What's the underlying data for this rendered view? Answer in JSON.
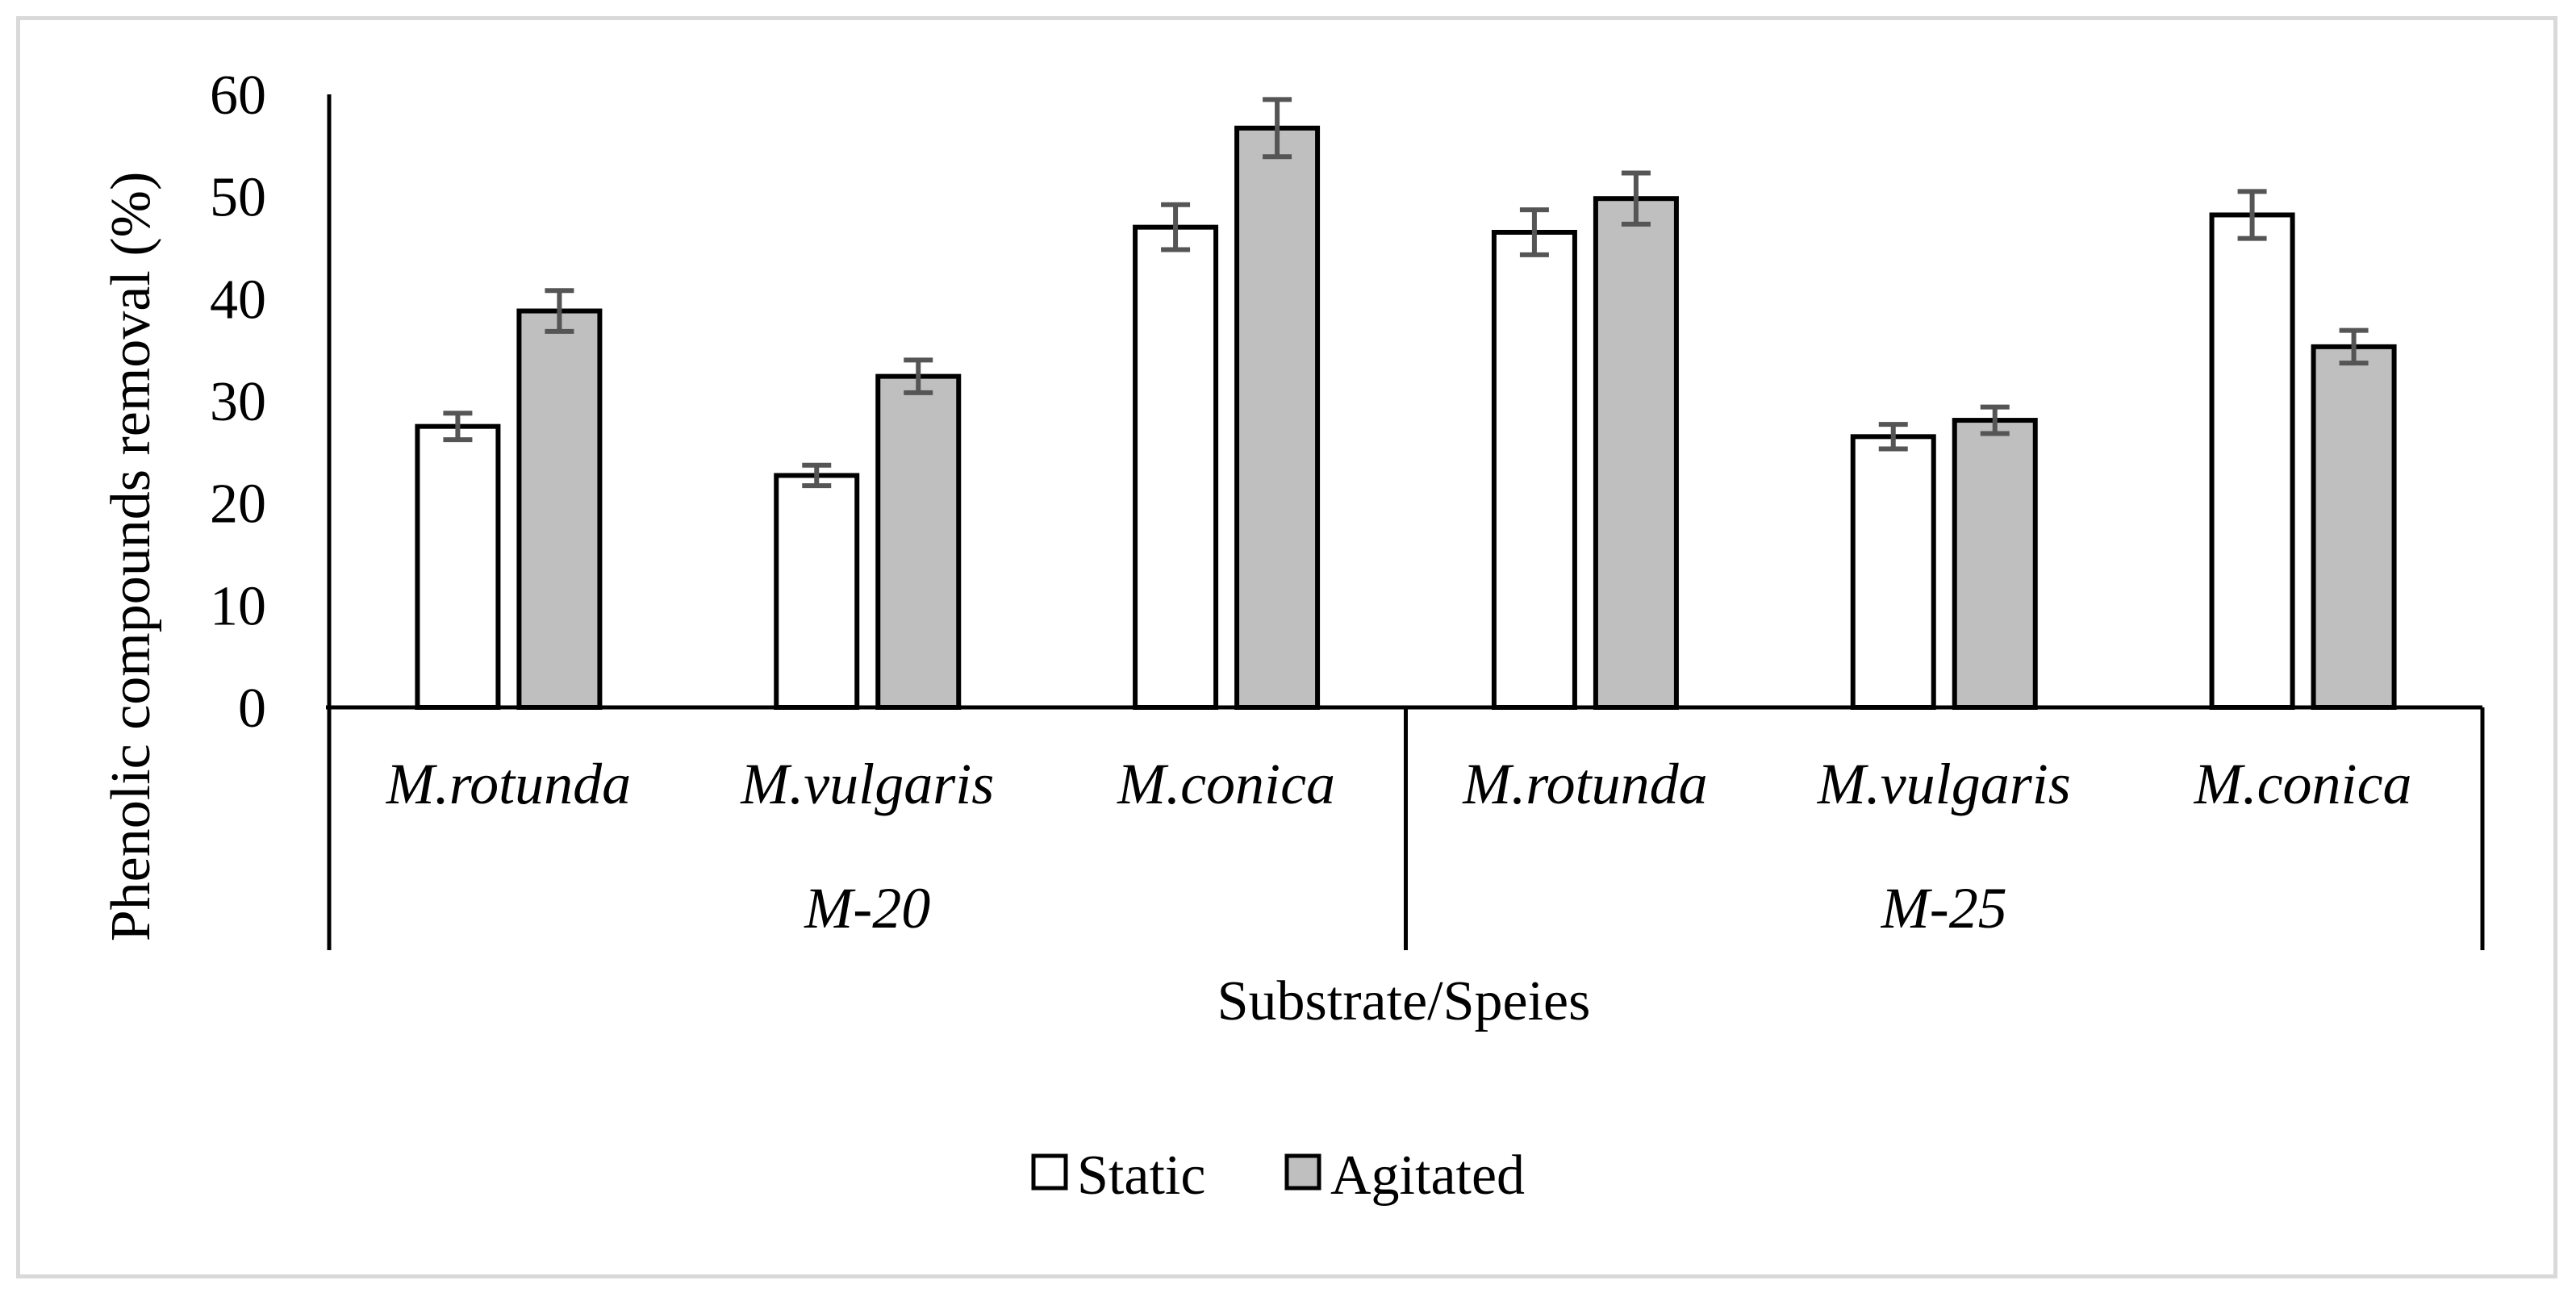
{
  "chart_data": {
    "type": "bar",
    "title": "",
    "xlabel": "Substrate/Speies",
    "ylabel": "Phenolic compounds removal (%)",
    "ylim": [
      0,
      60
    ],
    "yticks": [
      "0",
      "10",
      "20",
      "30",
      "40",
      "50",
      "60"
    ],
    "categories": [
      "M.rotunda",
      "M.vulgaris",
      "M.conica",
      "M.rotunda",
      "M.vulgaris",
      "M.conica"
    ],
    "groups": [
      {
        "label": "M-20",
        "categories": [
          "M.rotunda",
          "M.vulgaris",
          "M.conica"
        ]
      },
      {
        "label": "M-25",
        "categories": [
          "M.rotunda",
          "M.vulgaris",
          "M.conica"
        ]
      }
    ],
    "series": [
      {
        "name": "Static",
        "color": "#ffffff",
        "values": [
          27.5,
          22.7,
          47.0,
          46.5,
          26.5,
          48.2
        ],
        "errors": [
          1.3,
          1.0,
          2.2,
          2.2,
          1.2,
          2.3
        ]
      },
      {
        "name": "Agitated",
        "color": "#bfbfbf",
        "values": [
          38.8,
          32.4,
          56.7,
          49.8,
          28.1,
          35.3
        ],
        "errors": [
          2.0,
          1.6,
          2.8,
          2.5,
          1.3,
          1.6
        ]
      }
    ],
    "legend_position": "bottom-center",
    "grid": false
  }
}
